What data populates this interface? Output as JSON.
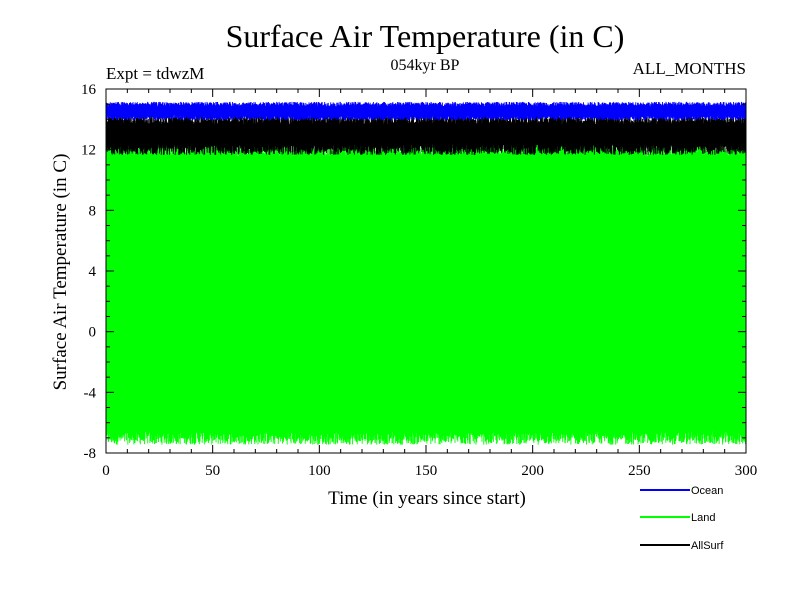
{
  "chart_data": {
    "type": "line",
    "title": "Surface Air Temperature (in C)",
    "subtitle_left": "Expt = tdwzM",
    "subtitle_center": "054kyr BP",
    "subtitle_right": "ALL_MONTHS",
    "xlabel": "Time (in years since start)",
    "ylabel": "Surface Air Temperature (in C)",
    "xlim": [
      0,
      300
    ],
    "ylim": [
      -8,
      16
    ],
    "x_ticks": [
      0,
      50,
      100,
      150,
      200,
      250,
      300
    ],
    "y_ticks": [
      -8,
      -4,
      0,
      4,
      8,
      12,
      16
    ],
    "grid": false,
    "legend_position": "bottom-right, outside plot",
    "series": [
      {
        "name": "Ocean",
        "color": "#0000ff",
        "annual_mean": 14.6,
        "seasonal_min": 14.1,
        "seasonal_max": 15.0,
        "mean_min": 14.1,
        "mean_max": 14.4
      },
      {
        "name": "Land",
        "color": "#00ff00",
        "annual_mean": 3.0,
        "seasonal_min": -7.0,
        "seasonal_max": 12.0,
        "mean_min": -6.8,
        "mean_max": 12.0
      },
      {
        "name": "AllSurf",
        "color": "#000000",
        "annual_mean": 13.0,
        "seasonal_min": 12.0,
        "seasonal_max": 14.0,
        "mean_min": 12.2,
        "mean_max": 13.5
      }
    ]
  }
}
